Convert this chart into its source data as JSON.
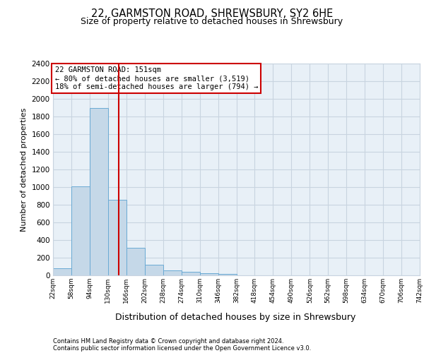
{
  "title_line1": "22, GARMSTON ROAD, SHREWSBURY, SY2 6HE",
  "title_line2": "Size of property relative to detached houses in Shrewsbury",
  "xlabel": "Distribution of detached houses by size in Shrewsbury",
  "ylabel": "Number of detached properties",
  "footnote1": "Contains HM Land Registry data © Crown copyright and database right 2024.",
  "footnote2": "Contains public sector information licensed under the Open Government Licence v3.0.",
  "annotation_line1": "22 GARMSTON ROAD: 151sqm",
  "annotation_line2": "← 80% of detached houses are smaller (3,519)",
  "annotation_line3": "18% of semi-detached houses are larger (794) →",
  "bar_color": "#c5d8e8",
  "bar_edge_color": "#6aaad4",
  "vline_color": "#cc0000",
  "vline_x": 151,
  "bin_edges": [
    22,
    58,
    94,
    130,
    166,
    202,
    238,
    274,
    310,
    346,
    382,
    418,
    454,
    490,
    526,
    562,
    598,
    634,
    670,
    706,
    742
  ],
  "bin_counts": [
    80,
    1010,
    1900,
    860,
    310,
    120,
    55,
    40,
    25,
    15,
    0,
    0,
    0,
    0,
    0,
    0,
    0,
    0,
    0,
    0
  ],
  "ylim": [
    0,
    2400
  ],
  "yticks": [
    0,
    200,
    400,
    600,
    800,
    1000,
    1200,
    1400,
    1600,
    1800,
    2000,
    2200,
    2400
  ],
  "grid_color": "#c8d4e0",
  "ax_face_color": "#e8f0f7",
  "annotation_box_color": "#ffffff",
  "annotation_box_edge": "#cc0000",
  "title1_fontsize": 10.5,
  "title2_fontsize": 9,
  "ylabel_fontsize": 8,
  "xlabel_fontsize": 9,
  "ytick_fontsize": 7.5,
  "xtick_fontsize": 6.5,
  "footnote_fontsize": 6.0,
  "annot_fontsize": 7.5
}
